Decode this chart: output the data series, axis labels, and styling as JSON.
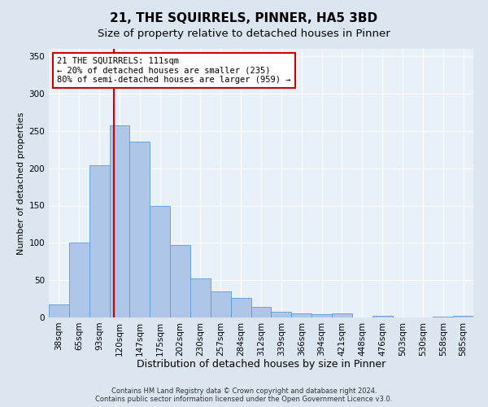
{
  "title": "21, THE SQUIRRELS, PINNER, HA5 3BD",
  "subtitle": "Size of property relative to detached houses in Pinner",
  "xlabel": "Distribution of detached houses by size in Pinner",
  "ylabel": "Number of detached properties",
  "categories": [
    "38sqm",
    "65sqm",
    "93sqm",
    "120sqm",
    "147sqm",
    "175sqm",
    "202sqm",
    "230sqm",
    "257sqm",
    "284sqm",
    "312sqm",
    "339sqm",
    "366sqm",
    "394sqm",
    "421sqm",
    "448sqm",
    "476sqm",
    "503sqm",
    "530sqm",
    "558sqm",
    "585sqm"
  ],
  "values": [
    18,
    100,
    204,
    257,
    236,
    150,
    97,
    52,
    35,
    26,
    14,
    8,
    6,
    4,
    5,
    0,
    2,
    0,
    0,
    1,
    2
  ],
  "bar_color": "#aec6e8",
  "bar_edge_color": "#5b9bd5",
  "vline_x_index": 2.73,
  "vline_color": "#cc0000",
  "annotation_text": "21 THE SQUIRRELS: 111sqm\n← 20% of detached houses are smaller (235)\n80% of semi-detached houses are larger (959) →",
  "annotation_box_color": "#ffffff",
  "annotation_box_edge": "#cc0000",
  "ylim": [
    0,
    360
  ],
  "yticks": [
    0,
    50,
    100,
    150,
    200,
    250,
    300,
    350
  ],
  "bg_color": "#dce6f1",
  "plot_bg_color": "#e8f0f8",
  "footer_line1": "Contains HM Land Registry data © Crown copyright and database right 2024.",
  "footer_line2": "Contains public sector information licensed under the Open Government Licence v3.0.",
  "title_fontsize": 11,
  "subtitle_fontsize": 9.5,
  "xlabel_fontsize": 9,
  "ylabel_fontsize": 8,
  "tick_fontsize": 7.5,
  "annotation_fontsize": 7.5
}
